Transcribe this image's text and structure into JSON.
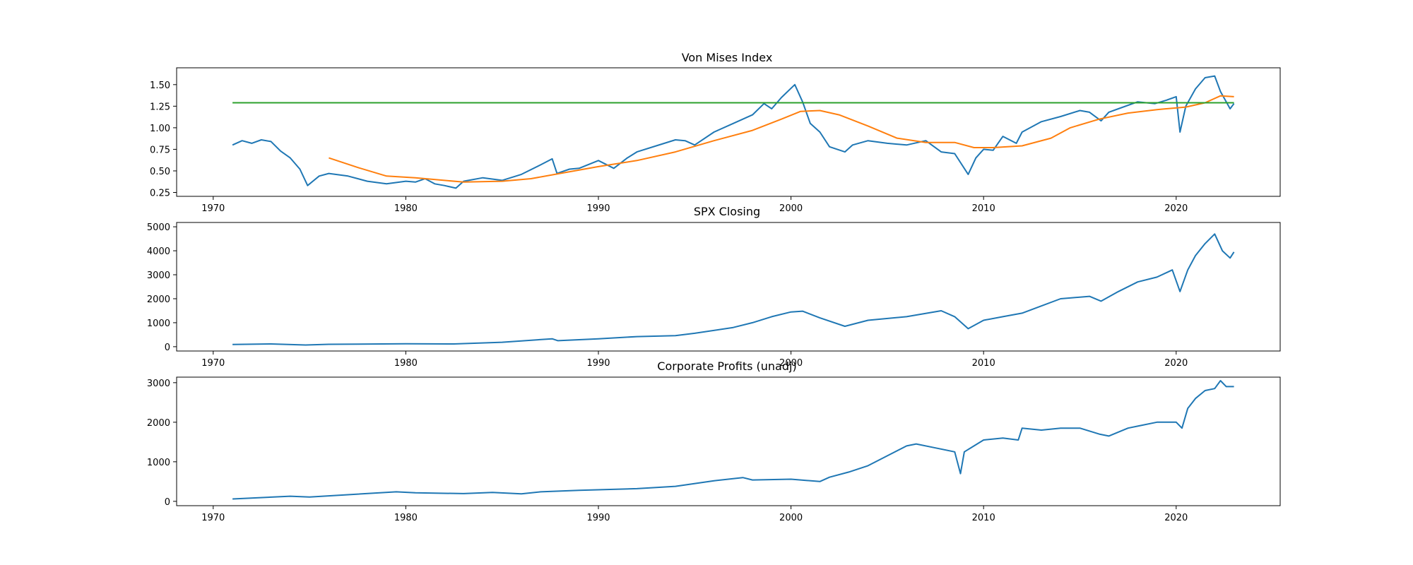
{
  "chart_data": [
    {
      "type": "line",
      "title": "Von Mises Index",
      "xlim": [
        1968.1,
        2025.4
      ],
      "ylim": [
        0.205,
        1.695
      ],
      "xticks": [
        1970,
        1980,
        1990,
        2000,
        2010,
        2020
      ],
      "yticks": [
        0.25,
        0.5,
        0.75,
        1.0,
        1.25,
        1.5
      ],
      "ytick_labels": [
        "0.25",
        "0.50",
        "0.75",
        "1.00",
        "1.25",
        "1.50"
      ],
      "series": [
        {
          "color": "#1f77b4",
          "x": [
            1971.0,
            1971.5,
            1972.0,
            1972.5,
            1973.0,
            1973.5,
            1974.0,
            1974.5,
            1974.9,
            1975.5,
            1976.0,
            1977.0,
            1978.0,
            1979.0,
            1980.0,
            1980.5,
            1981.0,
            1981.5,
            1982.0,
            1982.6,
            1983.0,
            1984.0,
            1985.0,
            1986.0,
            1987.0,
            1987.6,
            1987.85,
            1988.5,
            1989.0,
            1990.0,
            1990.8,
            1991.5,
            1992.0,
            1993.0,
            1994.0,
            1994.5,
            1995.0,
            1996.0,
            1997.0,
            1998.0,
            1998.6,
            1999.0,
            1999.5,
            2000.2,
            2000.6,
            2001.0,
            2001.5,
            2002.0,
            2002.8,
            2003.2,
            2004.0,
            2005.0,
            2006.0,
            2007.0,
            2007.8,
            2008.5,
            2009.2,
            2009.6,
            2010.0,
            2010.5,
            2011.0,
            2011.7,
            2012.0,
            2013.0,
            2014.0,
            2015.0,
            2015.5,
            2016.1,
            2016.5,
            2017.0,
            2018.0,
            2018.9,
            2019.5,
            2020.0,
            2020.2,
            2020.5,
            2021.0,
            2021.5,
            2022.0,
            2022.3,
            2022.6,
            2022.8,
            2023.0
          ],
          "y": [
            0.8,
            0.85,
            0.82,
            0.86,
            0.84,
            0.73,
            0.65,
            0.52,
            0.33,
            0.44,
            0.47,
            0.44,
            0.38,
            0.35,
            0.38,
            0.37,
            0.41,
            0.35,
            0.33,
            0.3,
            0.38,
            0.42,
            0.39,
            0.46,
            0.57,
            0.64,
            0.47,
            0.52,
            0.53,
            0.62,
            0.53,
            0.65,
            0.72,
            0.79,
            0.86,
            0.85,
            0.8,
            0.95,
            1.05,
            1.15,
            1.28,
            1.22,
            1.35,
            1.5,
            1.3,
            1.05,
            0.95,
            0.78,
            0.72,
            0.8,
            0.85,
            0.82,
            0.8,
            0.85,
            0.72,
            0.7,
            0.46,
            0.65,
            0.75,
            0.74,
            0.9,
            0.82,
            0.95,
            1.07,
            1.13,
            1.2,
            1.18,
            1.08,
            1.18,
            1.22,
            1.3,
            1.28,
            1.32,
            1.36,
            0.95,
            1.25,
            1.45,
            1.58,
            1.6,
            1.42,
            1.3,
            1.22,
            1.28
          ]
        },
        {
          "color": "#ff7f0e",
          "x": [
            1976.0,
            1977.5,
            1979.0,
            1980.5,
            1982.0,
            1983.0,
            1985.0,
            1986.5,
            1988.0,
            1990.0,
            1992.0,
            1994.0,
            1996.0,
            1998.0,
            1999.5,
            2000.5,
            2001.5,
            2002.5,
            2004.0,
            2005.5,
            2007.0,
            2008.5,
            2009.5,
            2010.5,
            2012.0,
            2013.5,
            2014.5,
            2016.0,
            2017.5,
            2019.0,
            2020.5,
            2021.5,
            2022.3,
            2023.0
          ],
          "y": [
            0.65,
            0.54,
            0.44,
            0.42,
            0.39,
            0.37,
            0.38,
            0.41,
            0.47,
            0.55,
            0.62,
            0.72,
            0.85,
            0.97,
            1.1,
            1.19,
            1.2,
            1.15,
            1.02,
            0.88,
            0.83,
            0.83,
            0.77,
            0.77,
            0.79,
            0.88,
            1.0,
            1.1,
            1.17,
            1.21,
            1.24,
            1.29,
            1.37,
            1.36
          ]
        },
        {
          "color": "#2ca02c",
          "x": [
            1971.0,
            2023.0
          ],
          "y": [
            1.29,
            1.29
          ]
        }
      ]
    },
    {
      "type": "line",
      "title": "SPX Closing",
      "xlim": [
        1968.1,
        2025.4
      ],
      "ylim": [
        -180,
        5180
      ],
      "xticks": [
        1970,
        1980,
        1990,
        2000,
        2010,
        2020
      ],
      "yticks": [
        0,
        1000,
        2000,
        3000,
        4000,
        5000
      ],
      "ytick_labels": [
        "0",
        "1000",
        "2000",
        "3000",
        "4000",
        "5000"
      ],
      "series": [
        {
          "color": "#1f77b4",
          "x": [
            1971.0,
            1973.0,
            1974.8,
            1976.0,
            1980.0,
            1982.5,
            1985.0,
            1987.6,
            1987.9,
            1990.0,
            1992.0,
            1994.0,
            1995.0,
            1997.0,
            1998.0,
            1999.0,
            2000.0,
            2000.6,
            2001.5,
            2002.8,
            2004.0,
            2006.0,
            2007.8,
            2008.5,
            2009.2,
            2010.0,
            2011.0,
            2012.0,
            2013.0,
            2014.0,
            2015.5,
            2016.1,
            2017.0,
            2018.0,
            2019.0,
            2019.8,
            2020.2,
            2020.6,
            2021.0,
            2021.5,
            2022.0,
            2022.4,
            2022.8,
            2023.0
          ],
          "y": [
            95,
            115,
            70,
            100,
            120,
            115,
            185,
            330,
            250,
            330,
            420,
            460,
            560,
            800,
            1000,
            1250,
            1450,
            1480,
            1200,
            850,
            1100,
            1250,
            1500,
            1250,
            750,
            1100,
            1250,
            1400,
            1700,
            2000,
            2100,
            1900,
            2300,
            2700,
            2900,
            3200,
            2300,
            3200,
            3800,
            4300,
            4700,
            4000,
            3700,
            3950
          ]
        }
      ]
    },
    {
      "type": "line",
      "title": "Corporate Profits (unadj)",
      "xlim": [
        1968.1,
        2025.4
      ],
      "ylim": [
        -110,
        3140
      ],
      "xticks": [
        1970,
        1980,
        1990,
        2000,
        2010,
        2020
      ],
      "yticks": [
        0,
        1000,
        2000,
        3000
      ],
      "ytick_labels": [
        "0",
        "1000",
        "2000",
        "3000"
      ],
      "series": [
        {
          "color": "#1f77b4",
          "x": [
            1971.0,
            1974.0,
            1975.0,
            1979.5,
            1980.5,
            1983.0,
            1984.5,
            1986.0,
            1987.0,
            1989.0,
            1992.0,
            1994.0,
            1996.0,
            1997.5,
            1998.0,
            2000.0,
            2001.5,
            2002.0,
            2003.0,
            2004.0,
            2005.0,
            2006.0,
            2006.5,
            2007.5,
            2008.5,
            2008.8,
            2009.0,
            2009.5,
            2010.0,
            2011.0,
            2011.8,
            2012.0,
            2013.0,
            2014.0,
            2015.0,
            2016.0,
            2016.5,
            2017.5,
            2018.0,
            2019.0,
            2020.0,
            2020.3,
            2020.6,
            2021.0,
            2021.5,
            2022.0,
            2022.3,
            2022.6,
            2023.0
          ],
          "y": [
            60,
            130,
            110,
            240,
            215,
            195,
            225,
            190,
            240,
            280,
            320,
            380,
            520,
            600,
            540,
            560,
            500,
            610,
            740,
            900,
            1150,
            1400,
            1450,
            1350,
            1250,
            700,
            1250,
            1400,
            1550,
            1600,
            1550,
            1850,
            1800,
            1850,
            1850,
            1700,
            1650,
            1850,
            1900,
            2000,
            2000,
            1850,
            2350,
            2600,
            2800,
            2850,
            3050,
            2900,
            2900
          ]
        }
      ]
    }
  ]
}
